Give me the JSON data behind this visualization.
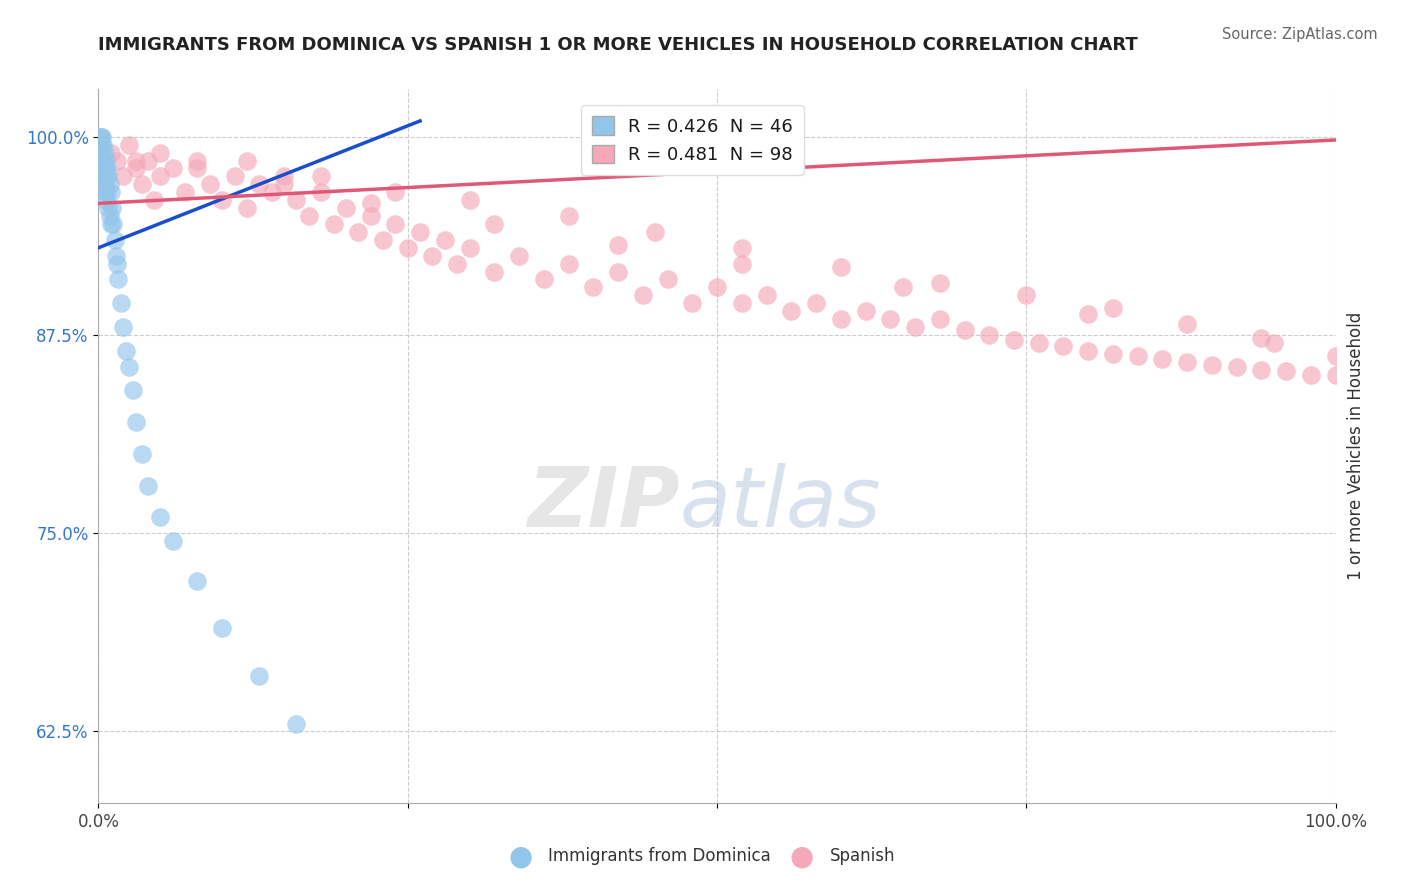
{
  "title": "IMMIGRANTS FROM DOMINICA VS SPANISH 1 OR MORE VEHICLES IN HOUSEHOLD CORRELATION CHART",
  "source": "Source: ZipAtlas.com",
  "ylabel": "1 or more Vehicles in Household",
  "xlim": [
    0.0,
    1.0
  ],
  "ylim": [
    0.58,
    1.03
  ],
  "ytick_positions": [
    0.625,
    0.75,
    0.875,
    1.0
  ],
  "ytick_labels": [
    "62.5%",
    "75.0%",
    "87.5%",
    "100.0%"
  ],
  "legend1_label": "R = 0.426  N = 46",
  "legend2_label": "R = 0.481  N = 98",
  "blue_color": "#92C5EA",
  "pink_color": "#F4A8B8",
  "blue_line_color": "#1A4FCC",
  "pink_line_color": "#E05878",
  "blue_scatter_x": [
    0.001,
    0.001,
    0.002,
    0.002,
    0.002,
    0.003,
    0.003,
    0.003,
    0.003,
    0.004,
    0.004,
    0.004,
    0.005,
    0.005,
    0.005,
    0.006,
    0.006,
    0.006,
    0.007,
    0.007,
    0.008,
    0.008,
    0.009,
    0.009,
    0.01,
    0.01,
    0.011,
    0.012,
    0.013,
    0.014,
    0.015,
    0.016,
    0.018,
    0.02,
    0.022,
    0.025,
    0.028,
    0.03,
    0.035,
    0.04,
    0.05,
    0.06,
    0.08,
    0.1,
    0.13,
    0.16
  ],
  "blue_scatter_y": [
    1.0,
    0.99,
    1.0,
    0.99,
    0.985,
    1.0,
    0.995,
    0.98,
    0.975,
    0.995,
    0.985,
    0.97,
    0.99,
    0.98,
    0.965,
    0.985,
    0.975,
    0.96,
    0.98,
    0.965,
    0.975,
    0.955,
    0.97,
    0.95,
    0.965,
    0.945,
    0.955,
    0.945,
    0.935,
    0.925,
    0.92,
    0.91,
    0.895,
    0.88,
    0.865,
    0.855,
    0.84,
    0.82,
    0.8,
    0.78,
    0.76,
    0.745,
    0.72,
    0.69,
    0.66,
    0.63
  ],
  "pink_scatter_x": [
    0.005,
    0.01,
    0.015,
    0.02,
    0.025,
    0.03,
    0.035,
    0.04,
    0.045,
    0.05,
    0.06,
    0.07,
    0.08,
    0.09,
    0.1,
    0.11,
    0.12,
    0.13,
    0.14,
    0.15,
    0.16,
    0.17,
    0.18,
    0.19,
    0.2,
    0.21,
    0.22,
    0.23,
    0.24,
    0.25,
    0.26,
    0.27,
    0.28,
    0.29,
    0.3,
    0.32,
    0.34,
    0.36,
    0.38,
    0.4,
    0.42,
    0.44,
    0.46,
    0.48,
    0.5,
    0.52,
    0.54,
    0.56,
    0.58,
    0.6,
    0.62,
    0.64,
    0.66,
    0.68,
    0.7,
    0.72,
    0.74,
    0.76,
    0.78,
    0.8,
    0.82,
    0.84,
    0.86,
    0.88,
    0.9,
    0.92,
    0.94,
    0.96,
    0.98,
    1.0,
    0.05,
    0.12,
    0.18,
    0.24,
    0.3,
    0.38,
    0.45,
    0.52,
    0.6,
    0.68,
    0.75,
    0.82,
    0.88,
    0.94,
    1.0,
    0.03,
    0.08,
    0.15,
    0.22,
    0.32,
    0.42,
    0.52,
    0.65,
    0.8,
    0.95
  ],
  "pink_scatter_y": [
    0.97,
    0.99,
    0.985,
    0.975,
    0.995,
    0.98,
    0.97,
    0.985,
    0.96,
    0.975,
    0.98,
    0.965,
    0.985,
    0.97,
    0.96,
    0.975,
    0.955,
    0.97,
    0.965,
    0.975,
    0.96,
    0.95,
    0.965,
    0.945,
    0.955,
    0.94,
    0.95,
    0.935,
    0.945,
    0.93,
    0.94,
    0.925,
    0.935,
    0.92,
    0.93,
    0.915,
    0.925,
    0.91,
    0.92,
    0.905,
    0.915,
    0.9,
    0.91,
    0.895,
    0.905,
    0.895,
    0.9,
    0.89,
    0.895,
    0.885,
    0.89,
    0.885,
    0.88,
    0.885,
    0.878,
    0.875,
    0.872,
    0.87,
    0.868,
    0.865,
    0.863,
    0.862,
    0.86,
    0.858,
    0.856,
    0.855,
    0.853,
    0.852,
    0.85,
    0.85,
    0.99,
    0.985,
    0.975,
    0.965,
    0.96,
    0.95,
    0.94,
    0.93,
    0.918,
    0.908,
    0.9,
    0.892,
    0.882,
    0.873,
    0.862,
    0.985,
    0.98,
    0.97,
    0.958,
    0.945,
    0.932,
    0.92,
    0.905,
    0.888,
    0.87
  ],
  "blue_trendline_x": [
    0.0,
    0.26
  ],
  "blue_trendline_y": [
    0.93,
    1.01
  ],
  "pink_trendline_x": [
    0.0,
    1.0
  ],
  "pink_trendline_y": [
    0.958,
    0.998
  ]
}
